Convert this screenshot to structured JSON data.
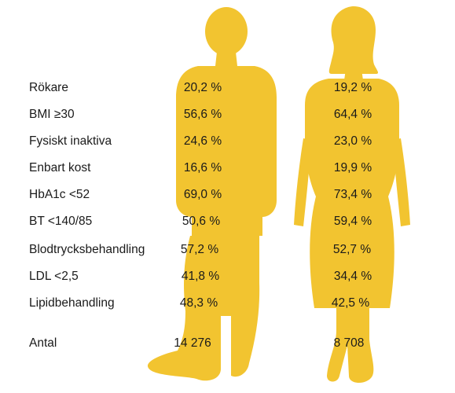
{
  "chart_data": {
    "type": "table",
    "series": [
      {
        "name": "",
        "icon": "male-silhouette",
        "values": [
          "20,2 %",
          "56,6 %",
          "24,6 %",
          "16,6 %",
          "69,0 %",
          "50,6 %",
          "57,2 %",
          "41,8 %",
          "48,3 %"
        ],
        "count": "14 276"
      },
      {
        "name": "",
        "icon": "female-silhouette",
        "values": [
          "19,2 %",
          "64,4 %",
          "23,0 %",
          "19,9 %",
          "73,4 %",
          "59,4 %",
          "52,7 %",
          "34,4 %",
          "42,5 %"
        ],
        "count": "8 708"
      }
    ],
    "rows": [
      "Rökare",
      "BMI ≥30",
      "Fysiskt inaktiva",
      "Enbart kost",
      "HbA1c <52",
      "BT <140/85",
      "Blodtrycksbehandling",
      "LDL <2,5",
      "Lipidbehandling"
    ],
    "count_label": "Antal",
    "silhouette_color": "#f2c430"
  }
}
